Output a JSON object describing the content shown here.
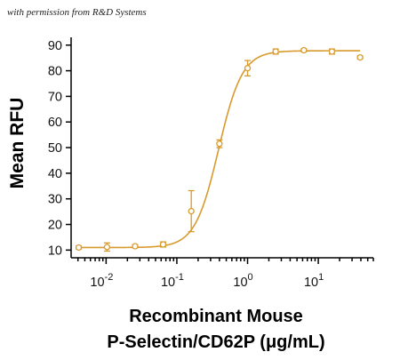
{
  "watermark": "with permission from R&D Systems",
  "chart_data": {
    "type": "scatter",
    "ylabel": "Mean RFU",
    "xlabel_line1": "Recombinant Mouse",
    "xlabel_line2": "P-Selectin/CD62P (μg/mL)",
    "x_scale": "log",
    "xlim": [
      0.0032,
      60
    ],
    "ylim": [
      7,
      92
    ],
    "y_ticks": [
      10,
      20,
      30,
      40,
      50,
      60,
      70,
      80,
      90
    ],
    "x_ticks": [
      {
        "value": 0.01,
        "base": "10",
        "exp": "-2"
      },
      {
        "value": 0.1,
        "base": "10",
        "exp": "-1"
      },
      {
        "value": 1,
        "base": "10",
        "exp": "0"
      },
      {
        "value": 10,
        "base": "10",
        "exp": "1"
      }
    ],
    "color": "#d89a2c",
    "grid": false,
    "points": [
      {
        "x": 0.0041,
        "y": 11.0,
        "err": 0.6
      },
      {
        "x": 0.0103,
        "y": 11.2,
        "err": 1.6
      },
      {
        "x": 0.0257,
        "y": 11.5,
        "err": 0.6
      },
      {
        "x": 0.064,
        "y": 12.2,
        "err": 1.0
      },
      {
        "x": 0.16,
        "y": 25.2,
        "err": 8.0
      },
      {
        "x": 0.4,
        "y": 51.5,
        "err": 1.5
      },
      {
        "x": 1.0,
        "y": 81.0,
        "err": 3.0
      },
      {
        "x": 2.5,
        "y": 87.5,
        "err": 1.0
      },
      {
        "x": 6.25,
        "y": 88.0,
        "err": 0.6
      },
      {
        "x": 15.6,
        "y": 87.5,
        "err": 1.0
      },
      {
        "x": 39,
        "y": 85.2,
        "err": 0.6
      }
    ],
    "fit": {
      "bottom": 11.0,
      "top": 87.8,
      "ec50": 0.39,
      "hill": 2.6
    }
  }
}
